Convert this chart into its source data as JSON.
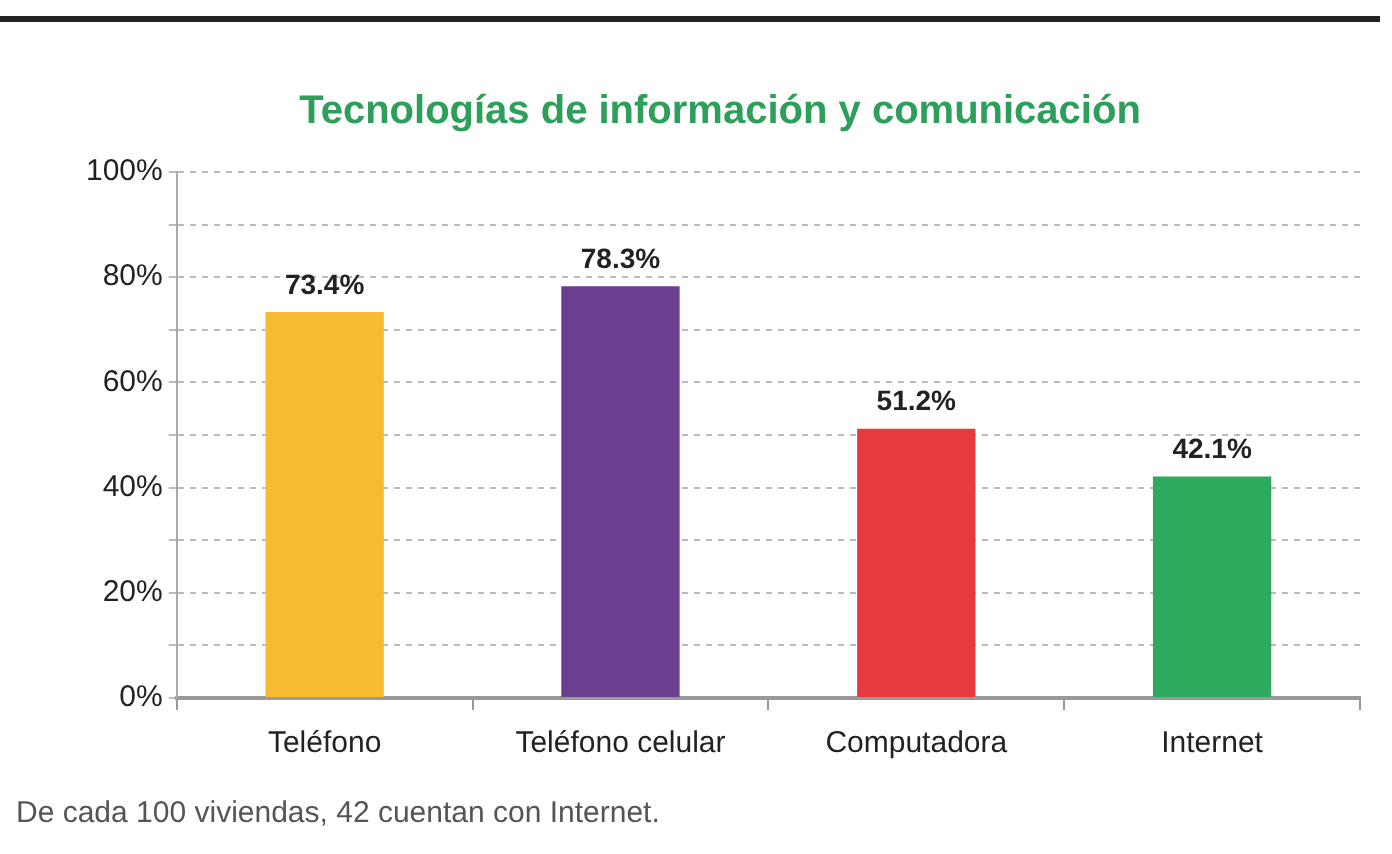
{
  "chart_data": {
    "type": "bar",
    "title": "Tecnologías de información y comunicación",
    "categories": [
      "Teléfono",
      "Teléfono celular",
      "Computadora",
      "Internet"
    ],
    "values": [
      73.4,
      78.3,
      51.2,
      42.1
    ],
    "colors": [
      "#f5bb33",
      "#6a3f8f",
      "#e63a3e",
      "#2eaa5e"
    ],
    "value_labels": [
      "73.4%",
      "78.3%",
      "51.2%",
      "42.1%"
    ],
    "ylim": [
      0,
      100
    ],
    "yticks": [
      {
        "value": 0,
        "label": "0%"
      },
      {
        "value": 10,
        "label": null
      },
      {
        "value": 20,
        "label": "20%"
      },
      {
        "value": 30,
        "label": null
      },
      {
        "value": 40,
        "label": "40%"
      },
      {
        "value": 50,
        "label": null
      },
      {
        "value": 60,
        "label": "60%"
      },
      {
        "value": 70,
        "label": null
      },
      {
        "value": 80,
        "label": "80%"
      },
      {
        "value": 90,
        "label": null
      },
      {
        "value": 100,
        "label": "100%"
      }
    ],
    "grid": "y",
    "legend": false,
    "annotations": [
      "De cada 100 viviendas, 42 cuentan con Internet."
    ]
  }
}
